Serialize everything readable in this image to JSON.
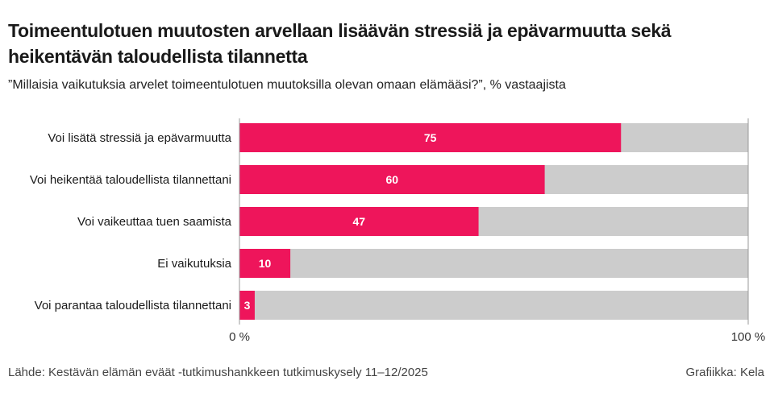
{
  "title": "Toimeentulotuen muutosten arvellaan lisäävän stressiä ja epävarmuutta sekä heikentävän taloudellista tilannetta",
  "subtitle": "”Millaisia vaikutuksia arvelet toimeentulotuen muutoksilla olevan omaan elämääsi?”, % vastaajista",
  "source": "Lähde: Kestävän elämän eväät -tutkimushankkeen tutkimuskysely 11–12/2025",
  "credit": "Grafiikka: Kela",
  "colors": {
    "bar": "#ee155b",
    "track": "#cccccc",
    "axis": "#999999"
  },
  "chart_data": {
    "type": "bar",
    "orientation": "horizontal",
    "categories": [
      "Voi lisätä stressiä ja epävarmuutta",
      "Voi heikentää taloudellista tilannettani",
      "Voi vaikeuttaa tuen saamista",
      "Ei vaikutuksia",
      "Voi parantaa taloudellista tilannettani"
    ],
    "values": [
      75,
      60,
      47,
      10,
      3
    ],
    "xlim": [
      0,
      100
    ],
    "x_ticks": [
      "0 %",
      "100 %"
    ],
    "background_track": true,
    "grid": false
  }
}
